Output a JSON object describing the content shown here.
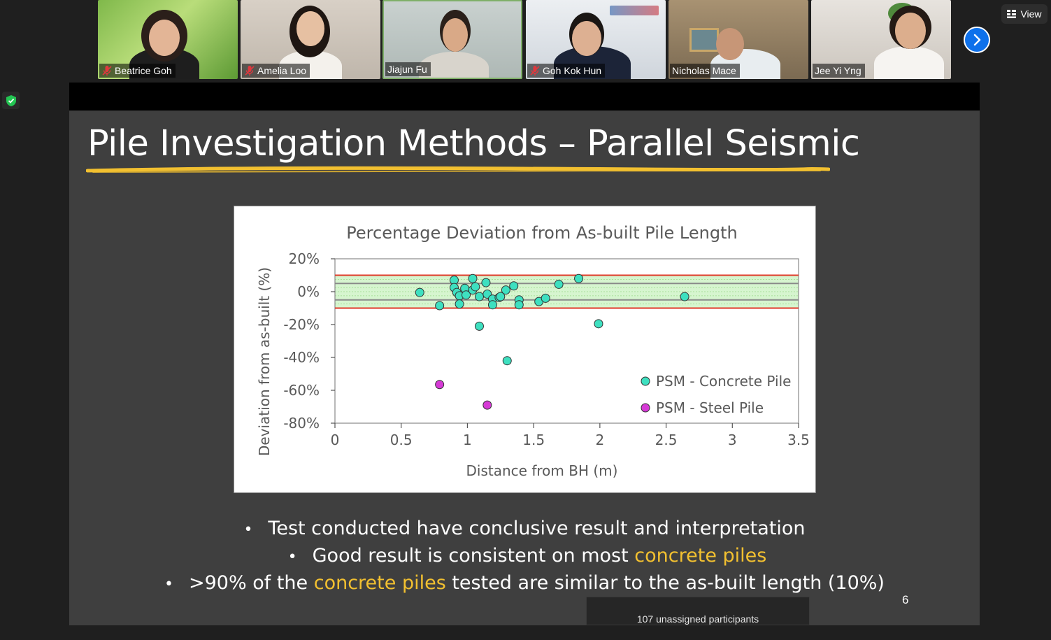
{
  "participants": [
    {
      "name": "Beatrice Goh",
      "muted": true
    },
    {
      "name": "Amelia Loo",
      "muted": true
    },
    {
      "name": "Jiajun Fu",
      "muted": false
    },
    {
      "name": "Goh Kok Hun",
      "muted": true
    },
    {
      "name": "Nicholas Mace",
      "muted": false
    },
    {
      "name": "Jee Yi Yng",
      "muted": false
    }
  ],
  "toolbar": {
    "view_label": "View"
  },
  "slide": {
    "title": "Pile Investigation Methods – Parallel Seismic",
    "number": "6",
    "bullets": [
      {
        "pre": "Test conducted have conclusive result and interpretation",
        "hl": "",
        "post": ""
      },
      {
        "pre": "Good result is consistent on most ",
        "hl": "concrete piles",
        "post": ""
      },
      {
        "pre": ">90% of the ",
        "hl": "concrete piles",
        "post": " tested are similar to the as-built length (10%)"
      }
    ]
  },
  "footer": {
    "unassigned": "107 unassigned participants"
  },
  "colors": {
    "accent": "#f2c030",
    "zoom_blue": "#0e71eb",
    "active_border": "#7fb069"
  },
  "chart_data": {
    "type": "scatter",
    "title": "Percentage Deviation from As-built Pile Length",
    "xlabel": "Distance from BH (m)",
    "ylabel": "Deviation from as-built (%)",
    "xlim": [
      0,
      3.5
    ],
    "ylim": [
      -80,
      20
    ],
    "xticks": [
      "0",
      "0.5",
      "1",
      "1.5",
      "2",
      "2.5",
      "3",
      "3.5"
    ],
    "yticks": [
      "20%",
      "0%",
      "-20%",
      "-40%",
      "-60%",
      "-80%"
    ],
    "grid": false,
    "legend_position": "bottom-right",
    "reference_lines": [
      {
        "y": 10,
        "color": "#e03a2a"
      },
      {
        "y": -10,
        "color": "#e03a2a"
      },
      {
        "y": 5,
        "color": "#8a8a8a"
      },
      {
        "y": -5,
        "color": "#8a8a8a"
      }
    ],
    "band": {
      "from": -10,
      "to": 10,
      "color": "#d6f5cf"
    },
    "series": [
      {
        "name": "PSM - Concrete Pile",
        "color": "#3ee0c0",
        "points": [
          [
            0.64,
            -0.5
          ],
          [
            0.79,
            -8.5
          ],
          [
            0.9,
            7
          ],
          [
            0.9,
            2.5
          ],
          [
            0.92,
            -0.5
          ],
          [
            0.94,
            -2.5
          ],
          [
            0.94,
            -7.5
          ],
          [
            0.98,
            2
          ],
          [
            0.99,
            -2
          ],
          [
            1.04,
            8
          ],
          [
            1.04,
            1
          ],
          [
            1.06,
            3
          ],
          [
            1.09,
            -3
          ],
          [
            1.09,
            -21
          ],
          [
            1.14,
            5.5
          ],
          [
            1.15,
            -1.5
          ],
          [
            1.19,
            -4.5
          ],
          [
            1.19,
            -8
          ],
          [
            1.24,
            -3.5
          ],
          [
            1.25,
            -3
          ],
          [
            1.29,
            1
          ],
          [
            1.3,
            -42
          ],
          [
            1.35,
            3.5
          ],
          [
            1.39,
            -5
          ],
          [
            1.39,
            -8
          ],
          [
            1.54,
            -6
          ],
          [
            1.59,
            -4
          ],
          [
            1.69,
            4.5
          ],
          [
            1.84,
            8
          ],
          [
            1.99,
            -19.5
          ],
          [
            2.64,
            -3
          ]
        ]
      },
      {
        "name": "PSM - Steel Pile",
        "color": "#d63ad6",
        "points": [
          [
            0.79,
            -56.5
          ],
          [
            1.15,
            -69
          ]
        ]
      }
    ]
  }
}
